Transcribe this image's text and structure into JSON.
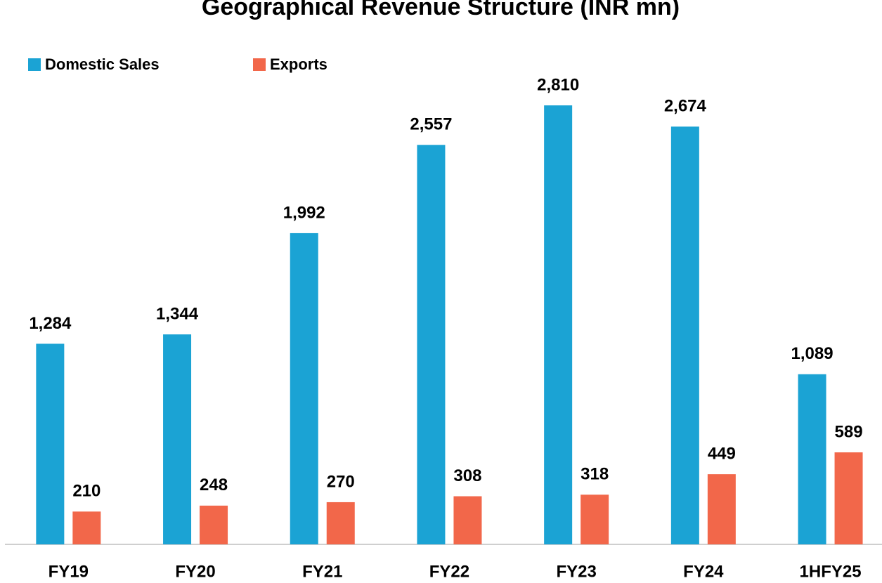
{
  "chart_data": {
    "type": "bar",
    "title": "Geographical Revenue Structure (INR mn)",
    "categories": [
      "FY19",
      "FY20",
      "FY21",
      "FY22",
      "FY23",
      "FY24",
      "1HFY25"
    ],
    "series": [
      {
        "name": "Domestic Sales",
        "color": "#1ba3d4",
        "values": [
          1284,
          1344,
          1992,
          2557,
          2810,
          2674,
          1089
        ],
        "value_labels": [
          "1,284",
          "1,344",
          "1,992",
          "2,557",
          "2,810",
          "2,674",
          "1,089"
        ]
      },
      {
        "name": "Exports",
        "color": "#f2674a",
        "values": [
          210,
          248,
          270,
          308,
          318,
          449,
          589
        ],
        "value_labels": [
          "210",
          "248",
          "270",
          "308",
          "318",
          "449",
          "589"
        ]
      }
    ],
    "legend": "top-left"
  }
}
